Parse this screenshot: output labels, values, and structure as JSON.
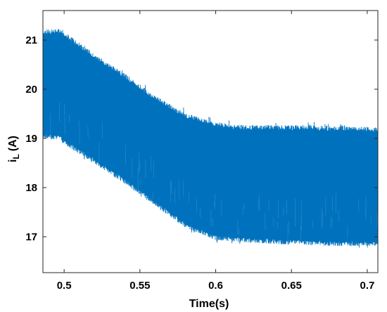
{
  "chart_data": {
    "type": "area",
    "title": "",
    "xlabel": "Time(s)",
    "ylabel": "i_L (A)",
    "ylabel_parts": {
      "main": "i",
      "sub": "L",
      "unit": "(A)"
    },
    "xlim": [
      0.486,
      0.707
    ],
    "ylim": [
      16.27,
      21.6
    ],
    "x_ticks": [
      0.5,
      0.55,
      0.6,
      0.65,
      0.7
    ],
    "x_tick_labels": [
      "0.5",
      "0.55",
      "0.6",
      "0.65",
      "0.7"
    ],
    "y_ticks": [
      17,
      18,
      19,
      20,
      21
    ],
    "y_tick_labels": [
      "17",
      "18",
      "19",
      "20",
      "21"
    ],
    "grid": false,
    "legend": false,
    "color": "#0072BD",
    "series": [
      {
        "x": [
          0.486,
          0.497,
          0.5,
          0.52,
          0.54,
          0.56,
          0.58,
          0.6,
          0.62,
          0.64,
          0.66,
          0.68,
          0.7,
          0.707
        ],
        "upper": [
          21.25,
          21.25,
          21.2,
          20.75,
          20.35,
          19.9,
          19.55,
          19.35,
          19.3,
          19.3,
          19.3,
          19.28,
          19.27,
          19.25
        ],
        "lower": [
          18.95,
          18.95,
          18.85,
          18.45,
          18.05,
          17.6,
          17.15,
          16.9,
          16.85,
          16.82,
          16.8,
          16.78,
          16.78,
          16.78
        ]
      }
    ]
  }
}
